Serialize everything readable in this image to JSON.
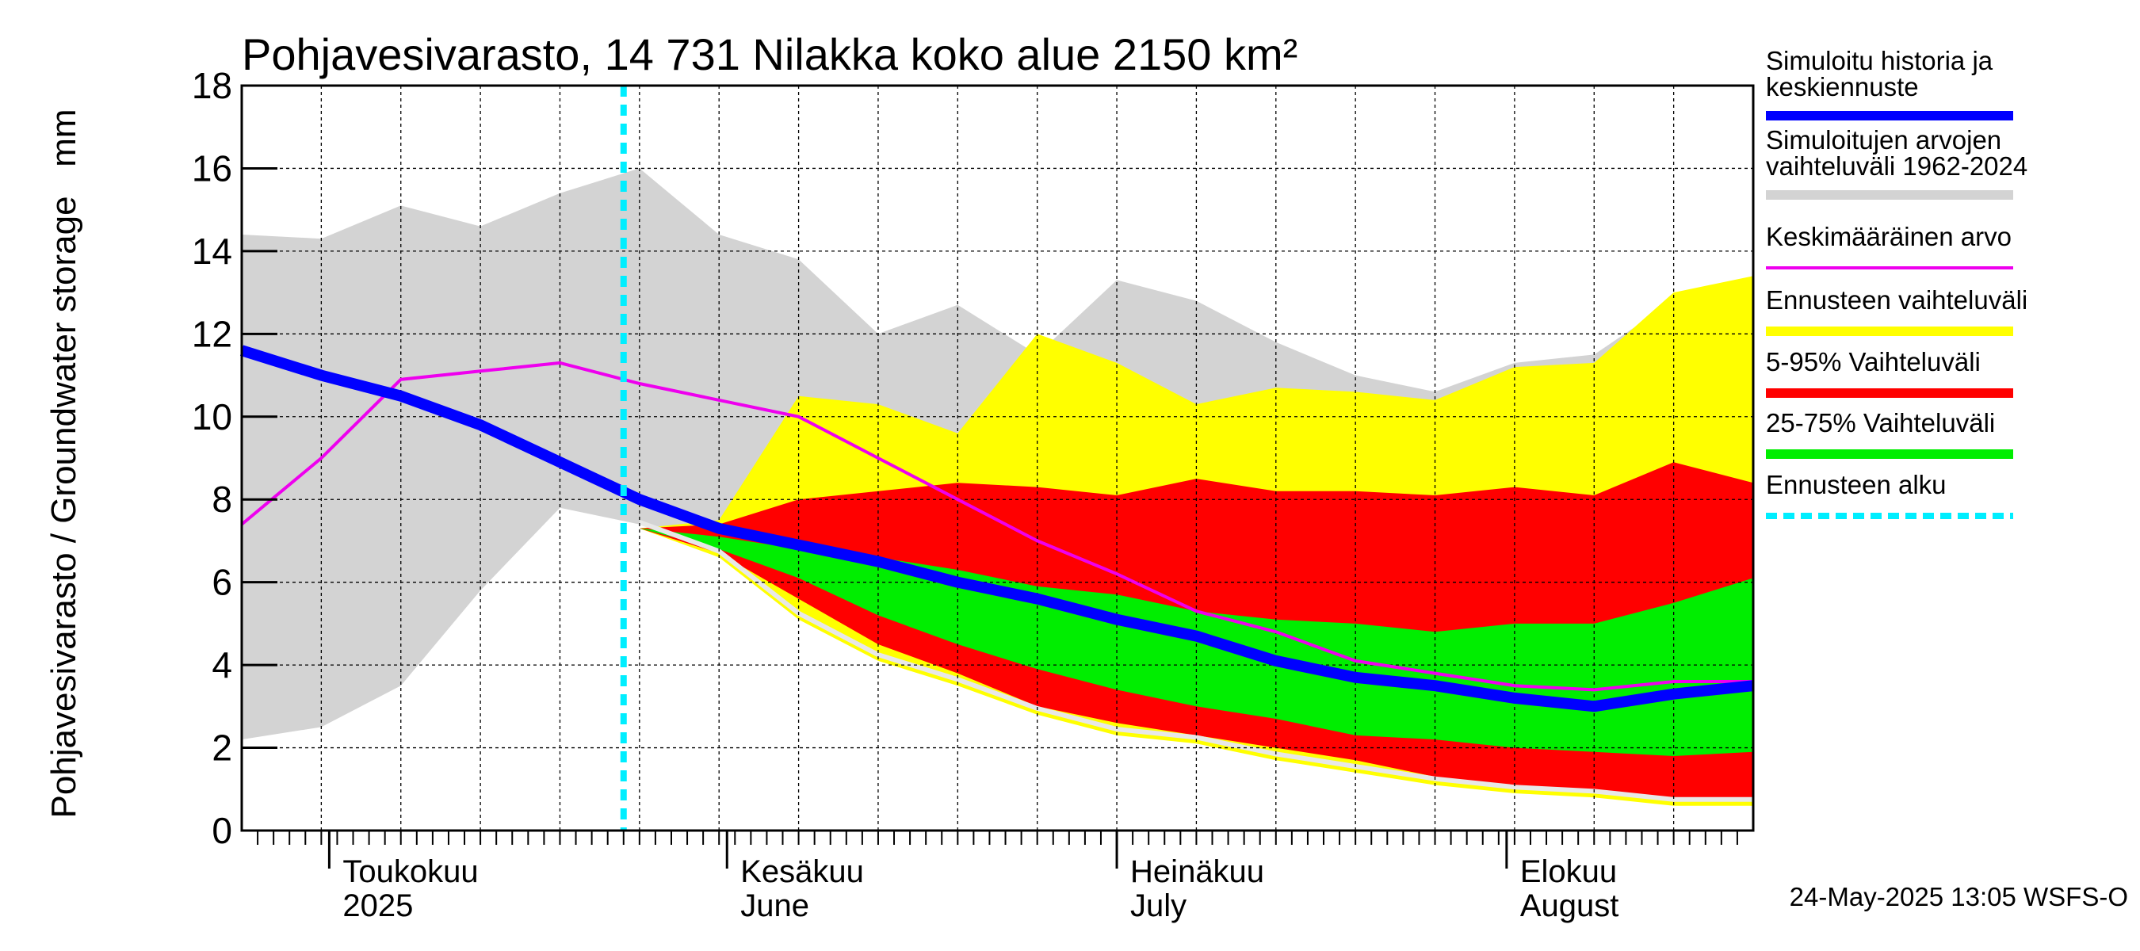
{
  "chart_data": {
    "type": "area",
    "title": "Pohjavesivarasto, 14 731 Nilakka koko alue 2150 km²",
    "ylabel": "Pohjavesivarasto / Groundwater storage   mm",
    "ylim": [
      0,
      18
    ],
    "yticks": [
      0,
      2,
      4,
      6,
      8,
      10,
      12,
      14,
      16,
      18
    ],
    "x_days": [
      0,
      10,
      20,
      30,
      40,
      50,
      60,
      70,
      80,
      90,
      100,
      110,
      120,
      130,
      140,
      150,
      160,
      170,
      180,
      190
    ],
    "x_range": [
      0,
      190
    ],
    "months": [
      {
        "day": 11,
        "label": "Toukokuu",
        "label2": "2025"
      },
      {
        "day": 61,
        "label": "Kesäkuu",
        "label2": "June"
      },
      {
        "day": 110,
        "label": "Heinäkuu",
        "label2": "July"
      },
      {
        "day": 159,
        "label": "Elokuu",
        "label2": "August"
      }
    ],
    "forecast_start_day": 48,
    "series": [
      {
        "name": "Simuloitujen arvojen vaihteluväli 1962-2024",
        "color": "#d3d3d3",
        "upper": [
          14.4,
          14.3,
          15.1,
          14.6,
          15.4,
          16.0,
          14.4,
          13.8,
          12.0,
          12.7,
          11.5,
          13.3,
          12.8,
          11.8,
          11.0,
          10.6,
          11.3,
          11.5,
          12.8,
          13.3
        ],
        "lower": [
          2.2,
          2.5,
          3.5,
          5.8,
          7.8,
          7.4,
          6.8,
          5.9,
          4.9,
          4.3,
          3.5,
          2.8,
          2.4,
          2.1,
          1.7,
          1.3,
          1.0,
          0.9,
          0.7,
          0.6
        ]
      },
      {
        "name": "Ennusteen vaihteluväli",
        "color": "#ffff00",
        "upper": [
          null,
          null,
          null,
          null,
          null,
          7.3,
          7.5,
          10.5,
          10.3,
          9.6,
          12.0,
          11.3,
          10.3,
          10.7,
          10.6,
          10.4,
          11.2,
          11.3,
          13.0,
          13.4
        ],
        "lower": [
          null,
          null,
          null,
          null,
          null,
          7.3,
          6.6,
          5.1,
          4.1,
          3.5,
          2.8,
          2.3,
          2.1,
          1.7,
          1.4,
          1.1,
          0.9,
          0.8,
          0.6,
          0.6
        ]
      },
      {
        "name": "5-95% Vaihteluväli",
        "color": "#ff0000",
        "upper": [
          null,
          null,
          null,
          null,
          null,
          7.3,
          7.4,
          8.0,
          8.2,
          8.4,
          8.3,
          8.1,
          8.5,
          8.2,
          8.2,
          8.1,
          8.3,
          8.1,
          8.9,
          8.4
        ],
        "lower": [
          null,
          null,
          null,
          null,
          null,
          7.3,
          6.7,
          5.6,
          4.5,
          3.8,
          3.0,
          2.6,
          2.3,
          2.0,
          1.7,
          1.3,
          1.1,
          0.9,
          0.8,
          0.8
        ]
      },
      {
        "name": "25-75% Vaihteluväli",
        "color": "#00ee00",
        "upper": [
          null,
          null,
          null,
          null,
          null,
          7.3,
          7.1,
          6.8,
          6.6,
          6.3,
          5.9,
          5.7,
          5.3,
          5.1,
          5.0,
          4.8,
          5.0,
          5.0,
          5.5,
          6.1
        ],
        "lower": [
          null,
          null,
          null,
          null,
          null,
          7.3,
          6.8,
          6.1,
          5.2,
          4.5,
          3.9,
          3.4,
          3.0,
          2.7,
          2.3,
          2.2,
          2.0,
          1.9,
          1.8,
          1.9
        ]
      },
      {
        "name": "Simuloitu historia ja keskiennuste",
        "color": "#0000ff",
        "values": [
          11.6,
          11.0,
          10.5,
          9.8,
          8.9,
          8.0,
          7.3,
          6.9,
          6.5,
          6.0,
          5.6,
          5.1,
          4.7,
          4.1,
          3.7,
          3.5,
          3.2,
          3.0,
          3.3,
          3.5
        ]
      },
      {
        "name": "Keskimääräinen arvo",
        "color": "#ee00ee",
        "values": [
          7.4,
          9.0,
          10.9,
          11.1,
          11.3,
          10.8,
          10.4,
          10.0,
          9.0,
          8.0,
          7.0,
          6.2,
          5.3,
          4.8,
          4.1,
          3.8,
          3.5,
          3.4,
          3.6,
          3.6
        ]
      },
      {
        "name": "Ennusteen alku",
        "color": "#00eeff"
      }
    ]
  },
  "legend": [
    {
      "line1": "Simuloitu historia ja",
      "line2": "keskiennuste",
      "color": "#0000ff",
      "style": "thick"
    },
    {
      "line1": "Simuloitujen arvojen",
      "line2": "vaihteluväli 1962-2024",
      "color": "#d3d3d3",
      "style": "band"
    },
    {
      "line1": "Keskimääräinen arvo",
      "line2": "",
      "color": "#ee00ee",
      "style": "thin"
    },
    {
      "line1": "Ennusteen vaihteluväli",
      "line2": "",
      "color": "#ffff00",
      "style": "band"
    },
    {
      "line1": "5-95% Vaihteluväli",
      "line2": "",
      "color": "#ff0000",
      "style": "band"
    },
    {
      "line1": "25-75% Vaihteluväli",
      "line2": "",
      "color": "#00ee00",
      "style": "band"
    },
    {
      "line1": "Ennusteen alku",
      "line2": "",
      "color": "#00eeff",
      "style": "dotted"
    }
  ],
  "timestamp": "24-May-2025 13:05 WSFS-O"
}
